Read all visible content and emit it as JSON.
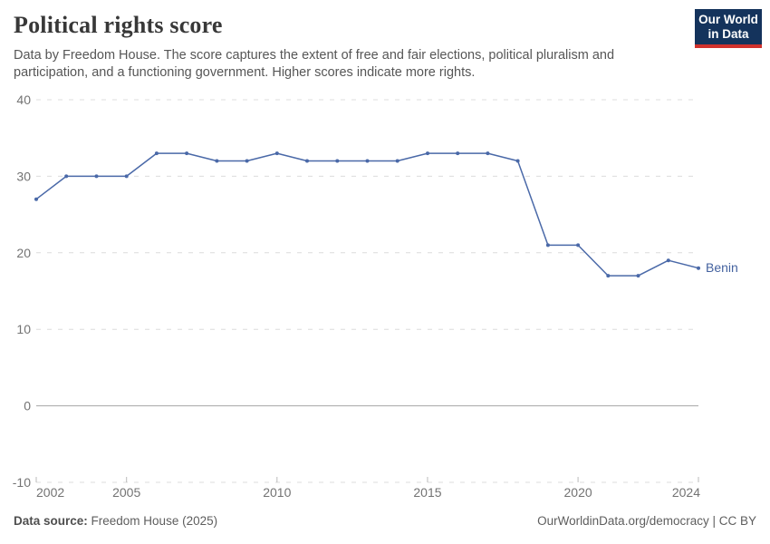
{
  "header": {
    "title": "Political rights score",
    "subtitle": "Data by Freedom House. The score captures the extent of free and fair elections, political pluralism and participation, and a functioning government. Higher scores indicate more rights.",
    "logo_line1": "Our World",
    "logo_line2": "in Data"
  },
  "chart_data": {
    "type": "line",
    "title": "Political rights score",
    "x": [
      2002,
      2003,
      2004,
      2005,
      2006,
      2007,
      2008,
      2009,
      2010,
      2011,
      2012,
      2013,
      2014,
      2015,
      2016,
      2017,
      2018,
      2019,
      2020,
      2021,
      2022,
      2023,
      2024
    ],
    "series": [
      {
        "name": "Benin",
        "values": [
          27,
          30,
          30,
          30,
          33,
          33,
          32,
          32,
          33,
          32,
          32,
          32,
          32,
          33,
          33,
          33,
          32,
          21,
          21,
          17,
          17,
          19,
          18
        ]
      }
    ],
    "ylim": [
      -10,
      40
    ],
    "yticks": [
      -10,
      0,
      10,
      20,
      30,
      40
    ],
    "xticks": [
      2002,
      2005,
      2010,
      2015,
      2020,
      2024
    ],
    "grid": "horizontal dashed gridlines, solid zero line, no legend box",
    "legend_position": "end-of-line label",
    "end_label": "Benin"
  },
  "footer": {
    "source_label": "Data source:",
    "source_value": " Freedom House (2025)",
    "right_text": "OurWorldinData.org/democracy | CC BY"
  },
  "colors": {
    "line": "#4a69a8",
    "end_label": "#44629f",
    "grid": "#dcdcdc",
    "zero_line": "#a6a6a6",
    "tick": "#bbbbbb",
    "axis_text": "#737373",
    "logo_bg": "#14335c",
    "logo_stripe": "#d0312d"
  }
}
